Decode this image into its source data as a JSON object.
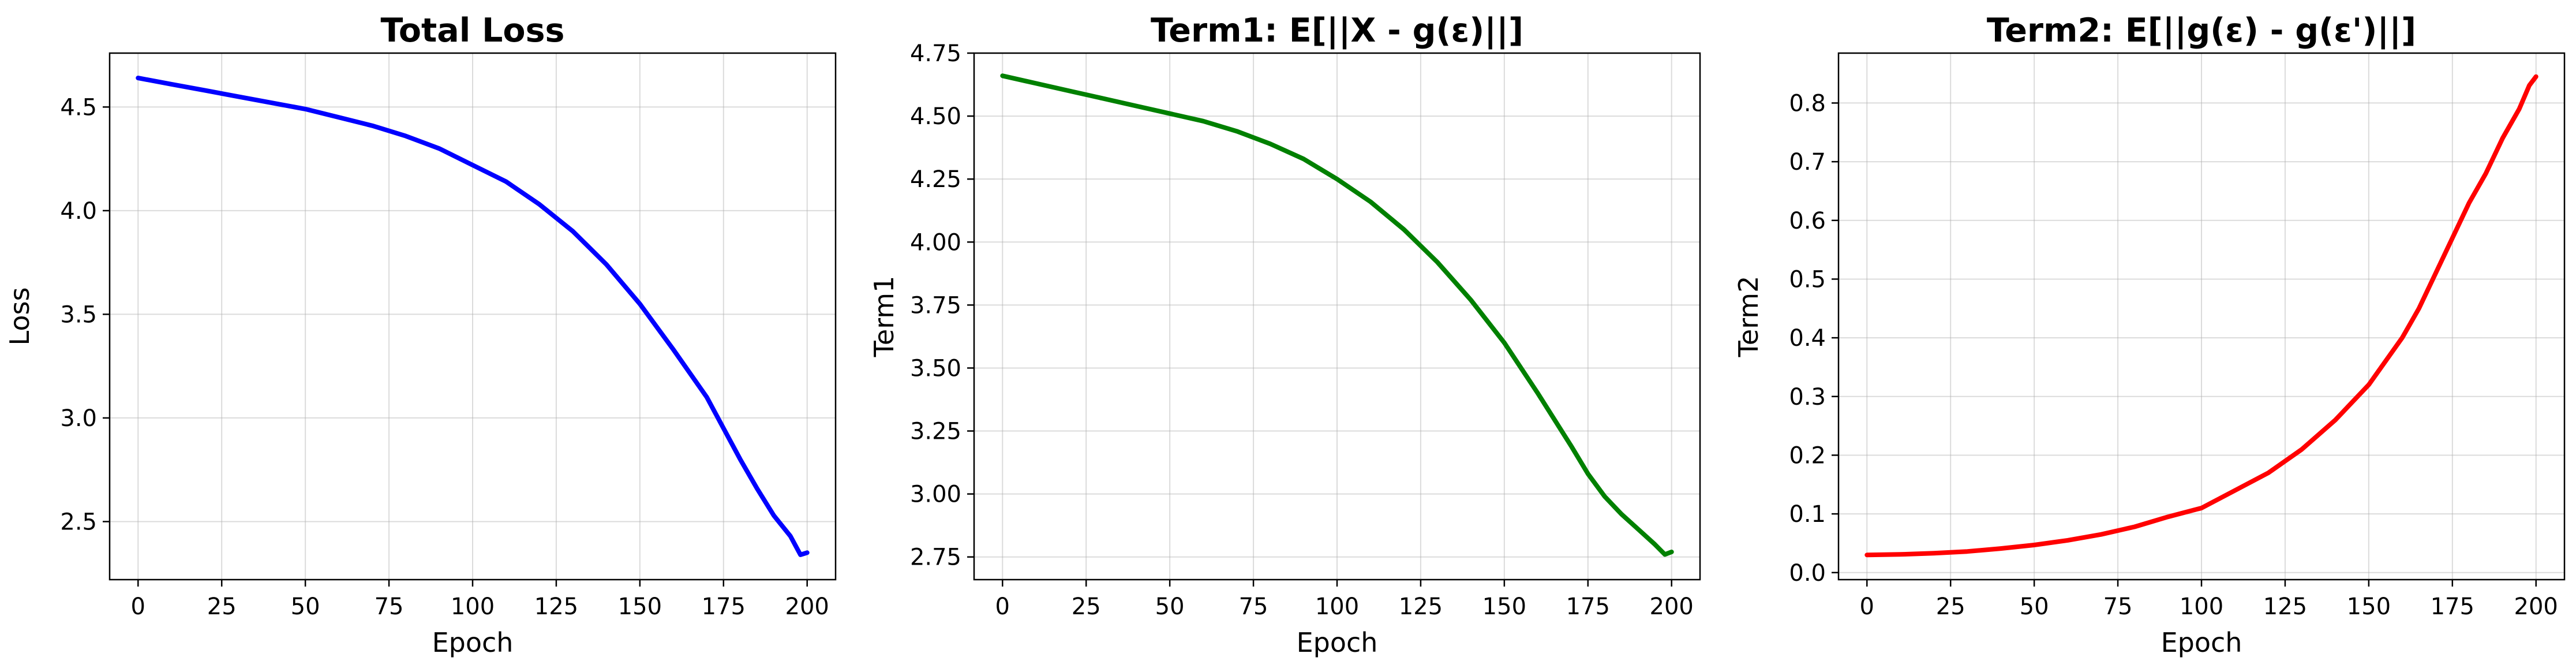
{
  "chart_data": [
    {
      "type": "line",
      "title": "Total Loss",
      "xlabel": "Epoch",
      "ylabel": "Loss",
      "xlim": [
        -8.5,
        208.5
      ],
      "ylim": [
        2.22,
        4.76
      ],
      "xticks": [
        0,
        25,
        50,
        75,
        100,
        125,
        150,
        175,
        200
      ],
      "yticks": [
        2.5,
        3.0,
        3.5,
        4.0,
        4.5
      ],
      "ytick_labels": [
        "2.5",
        "3.0",
        "3.5",
        "4.0",
        "4.5"
      ],
      "grid": true,
      "color": "#0000ff",
      "series": [
        {
          "x": [
            0,
            10,
            20,
            30,
            40,
            50,
            60,
            70,
            80,
            90,
            100,
            110,
            120,
            130,
            140,
            150,
            160,
            170,
            175,
            180,
            185,
            190,
            195,
            198,
            200
          ],
          "values": [
            4.64,
            4.61,
            4.58,
            4.55,
            4.52,
            4.49,
            4.45,
            4.41,
            4.36,
            4.3,
            4.22,
            4.14,
            4.03,
            3.9,
            3.74,
            3.55,
            3.33,
            3.1,
            2.95,
            2.8,
            2.66,
            2.53,
            2.43,
            2.34,
            2.35
          ]
        }
      ]
    },
    {
      "type": "line",
      "title": "Term1: E[||X - g(ε)||]",
      "xlabel": "Epoch",
      "ylabel": "Term1",
      "xlim": [
        -8.5,
        208.5
      ],
      "ylim": [
        2.66,
        4.75
      ],
      "xticks": [
        0,
        25,
        50,
        75,
        100,
        125,
        150,
        175,
        200
      ],
      "yticks": [
        2.75,
        3.0,
        3.25,
        3.5,
        3.75,
        4.0,
        4.25,
        4.5,
        4.75
      ],
      "ytick_labels": [
        "2.75",
        "3.00",
        "3.25",
        "3.50",
        "3.75",
        "4.00",
        "4.25",
        "4.50",
        "4.75"
      ],
      "grid": true,
      "color": "#008000",
      "series": [
        {
          "x": [
            0,
            10,
            20,
            30,
            40,
            50,
            60,
            70,
            80,
            90,
            100,
            110,
            120,
            130,
            140,
            150,
            160,
            170,
            175,
            180,
            185,
            190,
            195,
            198,
            200
          ],
          "values": [
            4.66,
            4.63,
            4.6,
            4.57,
            4.54,
            4.51,
            4.48,
            4.44,
            4.39,
            4.33,
            4.25,
            4.16,
            4.05,
            3.92,
            3.77,
            3.6,
            3.4,
            3.19,
            3.08,
            2.99,
            2.92,
            2.86,
            2.8,
            2.76,
            2.77
          ]
        }
      ]
    },
    {
      "type": "line",
      "title": "Term2: E[||g(ε) - g(ε')||]",
      "xlabel": "Epoch",
      "ylabel": "Term2",
      "xlim": [
        -8.5,
        208.5
      ],
      "ylim": [
        -0.012,
        0.885
      ],
      "xticks": [
        0,
        25,
        50,
        75,
        100,
        125,
        150,
        175,
        200
      ],
      "yticks": [
        0.0,
        0.1,
        0.2,
        0.3,
        0.4,
        0.5,
        0.6,
        0.7,
        0.8
      ],
      "ytick_labels": [
        "0.0",
        "0.1",
        "0.2",
        "0.3",
        "0.4",
        "0.5",
        "0.6",
        "0.7",
        "0.8"
      ],
      "grid": true,
      "color": "#ff0000",
      "series": [
        {
          "x": [
            0,
            10,
            20,
            30,
            40,
            50,
            60,
            70,
            80,
            90,
            100,
            110,
            120,
            130,
            140,
            150,
            160,
            165,
            170,
            175,
            180,
            185,
            190,
            195,
            198,
            200
          ],
          "values": [
            0.03,
            0.031,
            0.033,
            0.036,
            0.041,
            0.047,
            0.055,
            0.065,
            0.078,
            0.095,
            0.11,
            0.14,
            0.17,
            0.21,
            0.26,
            0.32,
            0.4,
            0.45,
            0.51,
            0.57,
            0.63,
            0.68,
            0.74,
            0.79,
            0.83,
            0.845
          ]
        }
      ]
    }
  ]
}
